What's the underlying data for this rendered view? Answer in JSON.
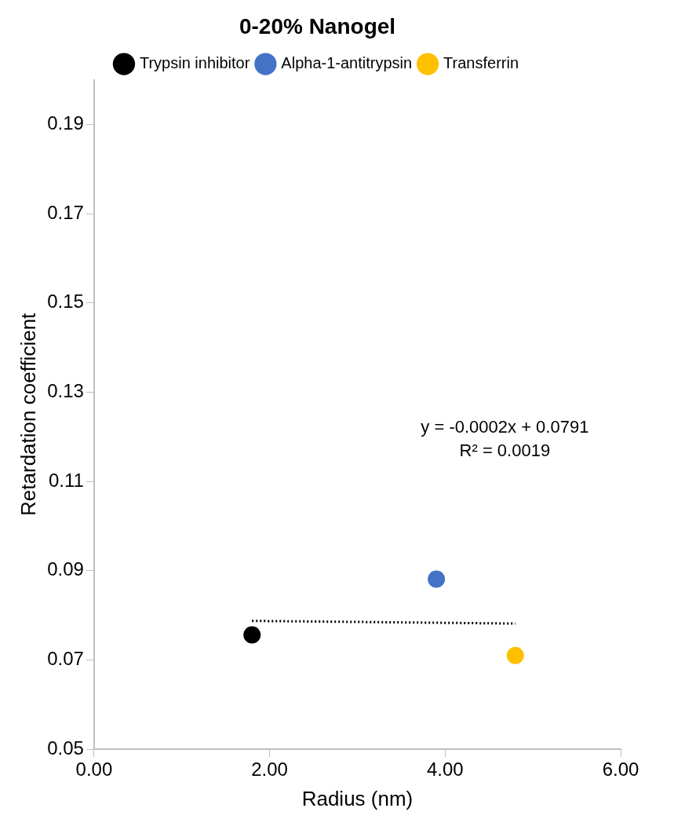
{
  "chart_data": {
    "type": "scatter",
    "title": "0-20% Nanogel",
    "xlabel": "Radius (nm)",
    "ylabel": "Retardation coefficient",
    "xlim": [
      0,
      6
    ],
    "xticks": [
      {
        "value": 0,
        "label": "0.00"
      },
      {
        "value": 2,
        "label": "2.00"
      },
      {
        "value": 4,
        "label": "4.00"
      },
      {
        "value": 6,
        "label": "6.00"
      }
    ],
    "ylim": [
      0.05,
      0.2
    ],
    "yticks": [
      0.05,
      0.07,
      0.09,
      0.11,
      0.13,
      0.15,
      0.17,
      0.19
    ],
    "series": [
      {
        "name": "Trypsin inhibitor",
        "color": "#000000",
        "x": [
          1.8
        ],
        "values": [
          0.0756
        ]
      },
      {
        "name": "Alpha-1-antitrypsin",
        "color": "#4472c4",
        "x": [
          3.9
        ],
        "values": [
          0.0881
        ]
      },
      {
        "name": "Transferrin",
        "color": "#ffc000",
        "x": [
          4.8
        ],
        "values": [
          0.071
        ]
      },
      {
        "type": "line",
        "color": "#000000",
        "x": [
          1.8,
          4.8
        ],
        "values": [
          0.07874,
          0.07814
        ],
        "line_style": "dotted",
        "marker": "none"
      }
    ],
    "annotations": [
      "y = -0.0002x + 0.0791",
      "R² = 0.0019"
    ],
    "marker": "circle",
    "grid": false,
    "legend": "top"
  }
}
